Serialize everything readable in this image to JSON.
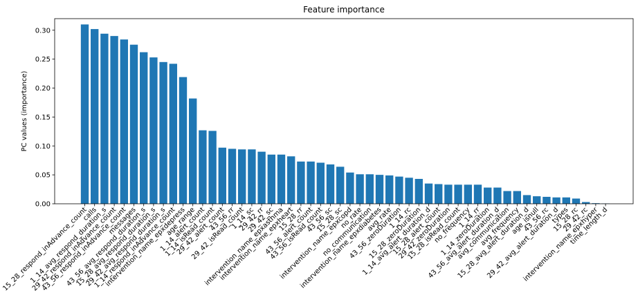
{
  "chart_data": {
    "type": "bar",
    "title": "Feature importance",
    "xlabel": "",
    "ylabel": "PC values (importance)",
    "ylim": [
      0,
      0.32
    ],
    "yticks": [
      0.0,
      0.05,
      0.1,
      0.15,
      0.2,
      0.25,
      0.3
    ],
    "ytick_labels": [
      "0.00",
      "0.05",
      "0.10",
      "0.15",
      "0.20",
      "0.25",
      "0.30"
    ],
    "grid": false,
    "bar_color": "#1f77b4",
    "categories": [
      "15_28_respond_inAdvance_count",
      "calls",
      "1_14_avg_respond_duration_s",
      "29_42_respond_inAdvance_count",
      "43_56_respond_inAdvance_count",
      "messages",
      "43_56_avg_respond_duration_s",
      "15_28_avg_respond_duration_s",
      "29_42_avg_respond_duration_s",
      "1_14_respond_inAdvance_count",
      "intervention_name_epxdepress",
      "age_range",
      "1_14_alert_count",
      "1_14_isRead_count",
      "29_42_alert_count",
      "43_56_rr",
      "29_42_isRead_count",
      "1_14_sc",
      "29_42_rr",
      "29_42_sc",
      "intervention_name_epxasthma",
      "intervention_name_epxheart",
      "15_28_rr",
      "43_56_alert_count",
      "43_56_isRead_count",
      "43_56_sc",
      "15_28_sc",
      "intervention_name_epxcopd",
      "no_rate",
      "no_communication",
      "intervention_name_epxdiabetes",
      "avg_rate",
      "43_56_zeroDuration",
      "1_14_rc",
      "15_28_zeroDuration",
      "1_14_avg_alert_duration_d",
      "15_28_alert_count",
      "29_42_zeroDuration",
      "15_28_isRead_count",
      "no_frequency",
      "1_14_rr",
      "1_14_zeroDuration",
      "43_56_avg_alert_duration_d",
      "avg_communication",
      "avg_frequency",
      "15_28_avg_alert_duration_d",
      "age_isnull",
      "43_56_rc",
      "29_42_avg_alert_duration_d",
      "types",
      "15_28_rc",
      "29_42_rc",
      "intervention_name_epxhyper",
      "time_length_d"
    ],
    "values": [
      0.31,
      0.302,
      0.294,
      0.29,
      0.284,
      0.275,
      0.262,
      0.253,
      0.245,
      0.242,
      0.219,
      0.182,
      0.127,
      0.126,
      0.097,
      0.095,
      0.094,
      0.094,
      0.09,
      0.085,
      0.085,
      0.082,
      0.073,
      0.073,
      0.071,
      0.068,
      0.064,
      0.054,
      0.051,
      0.051,
      0.05,
      0.049,
      0.047,
      0.045,
      0.043,
      0.035,
      0.034,
      0.033,
      0.033,
      0.033,
      0.033,
      0.028,
      0.028,
      0.022,
      0.022,
      0.015,
      0.013,
      0.012,
      0.011,
      0.011,
      0.009,
      0.003,
      0.001,
      0.0005
    ]
  }
}
